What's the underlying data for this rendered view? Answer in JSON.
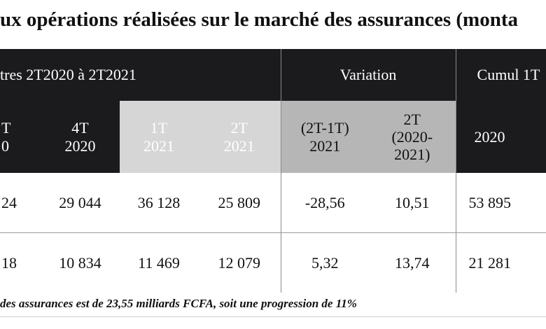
{
  "title": "ux opérations réalisées sur le marché des assurances (monta",
  "table": {
    "group_headers": {
      "quarters": "tres 2T2020 à 2T2021",
      "variation": "Variation",
      "cumul": "Cumul 1T"
    },
    "sub_headers": [
      [
        "T",
        "0"
      ],
      [
        "4T",
        "2020"
      ],
      [
        "1T",
        "2021"
      ],
      [
        "2T",
        "2021"
      ],
      [
        "(2T-1T)",
        "2021"
      ],
      [
        "2T",
        "(2020-",
        "2021)"
      ],
      [
        "2020"
      ]
    ],
    "rows": [
      [
        "24",
        "29 044",
        "36 128",
        "25 809",
        "-28,56",
        "10,51",
        "53 895"
      ],
      [
        "18",
        "10 834",
        "11 469",
        "12 079",
        "5,32",
        "13,74",
        "21 281"
      ]
    ]
  },
  "footnote": "des assurances est de 23,55 milliards FCFA, soit une progression de 11%"
}
